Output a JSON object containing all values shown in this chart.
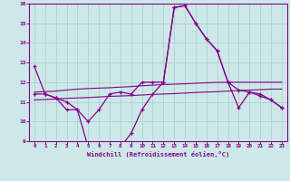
{
  "xlabel": "Windchill (Refroidissement éolien,°C)",
  "background_color": "#cce8e8",
  "line_color": "#880088",
  "grid_color": "#aacccc",
  "hours": [
    0,
    1,
    2,
    3,
    4,
    5,
    6,
    7,
    8,
    9,
    10,
    11,
    12,
    13,
    14,
    15,
    16,
    17,
    18,
    19,
    20,
    21,
    22,
    23
  ],
  "curve1": [
    12.8,
    11.4,
    11.2,
    11.0,
    10.6,
    10.0,
    10.6,
    11.4,
    11.5,
    11.4,
    12.0,
    12.0,
    12.0,
    15.8,
    15.9,
    15.0,
    14.2,
    13.6,
    12.0,
    11.6,
    11.5,
    11.4,
    11.1,
    10.7
  ],
  "curve2": [
    11.4,
    11.4,
    11.2,
    10.6,
    10.6,
    8.7,
    8.7,
    8.85,
    8.7,
    9.4,
    10.6,
    11.4,
    12.0,
    15.8,
    15.9,
    15.0,
    14.2,
    13.6,
    12.0,
    10.7,
    11.5,
    11.3,
    11.1,
    10.7
  ],
  "avg_line1": [
    11.1,
    11.12,
    11.15,
    11.18,
    11.2,
    11.22,
    11.25,
    11.28,
    11.3,
    11.32,
    11.35,
    11.38,
    11.4,
    11.42,
    11.45,
    11.48,
    11.5,
    11.52,
    11.55,
    11.58,
    11.6,
    11.62,
    11.65,
    11.65
  ],
  "avg_line2": [
    11.5,
    11.52,
    11.55,
    11.6,
    11.65,
    11.68,
    11.7,
    11.72,
    11.75,
    11.78,
    11.82,
    11.85,
    11.88,
    11.9,
    11.92,
    11.95,
    11.97,
    11.99,
    12.0,
    12.0,
    12.0,
    12.0,
    12.0,
    12.0
  ],
  "ylim": [
    9,
    16
  ],
  "xlim": [
    0,
    23
  ],
  "yticks": [
    9,
    10,
    11,
    12,
    13,
    14,
    15,
    16
  ],
  "xticks": [
    0,
    1,
    2,
    3,
    4,
    5,
    6,
    7,
    8,
    9,
    10,
    11,
    12,
    13,
    14,
    15,
    16,
    17,
    18,
    19,
    20,
    21,
    22,
    23
  ]
}
